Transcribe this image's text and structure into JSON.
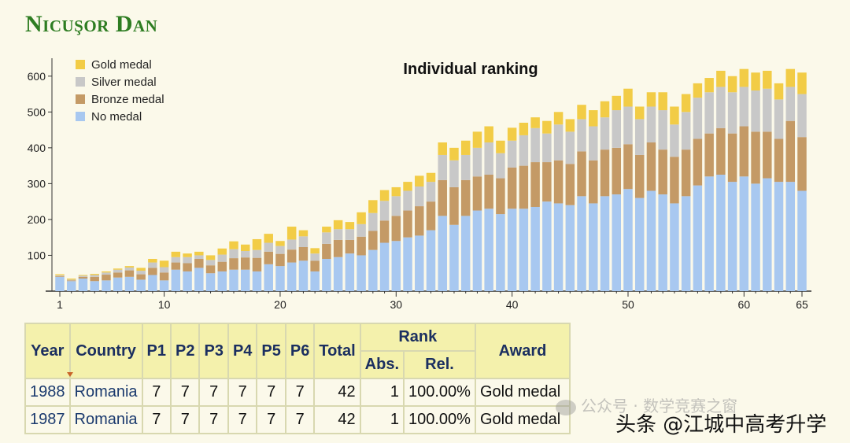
{
  "page": {
    "title": "Nicuşor Dan"
  },
  "chart_data": {
    "type": "bar",
    "stacked": true,
    "title": "Individual ranking",
    "xlabel": "",
    "ylabel": "",
    "ylim": [
      0,
      650
    ],
    "xticks": [
      1,
      10,
      20,
      30,
      40,
      50,
      60,
      65
    ],
    "yticks": [
      100,
      200,
      300,
      400,
      500,
      600
    ],
    "grid": false,
    "legend_position": "top-left",
    "categories": [
      1,
      2,
      3,
      4,
      5,
      6,
      7,
      8,
      9,
      10,
      11,
      12,
      13,
      14,
      15,
      16,
      17,
      18,
      19,
      20,
      21,
      22,
      23,
      24,
      25,
      26,
      27,
      28,
      29,
      30,
      31,
      32,
      33,
      34,
      35,
      36,
      37,
      38,
      39,
      40,
      41,
      42,
      43,
      44,
      45,
      46,
      47,
      48,
      49,
      50,
      51,
      52,
      53,
      54,
      55,
      56,
      57,
      58,
      59,
      60,
      61,
      62,
      63,
      64,
      65
    ],
    "series": [
      {
        "name": "No medal",
        "color": "#a8c8f0",
        "values": [
          40,
          28,
          35,
          28,
          30,
          38,
          40,
          32,
          45,
          30,
          60,
          55,
          65,
          50,
          55,
          60,
          60,
          55,
          75,
          70,
          80,
          85,
          55,
          90,
          95,
          105,
          100,
          115,
          135,
          140,
          150,
          155,
          170,
          210,
          185,
          210,
          225,
          230,
          215,
          230,
          230,
          235,
          250,
          245,
          240,
          265,
          245,
          265,
          270,
          285,
          260,
          280,
          270,
          245,
          265,
          295,
          320,
          325,
          305,
          320,
          300,
          315,
          305,
          305,
          280
        ]
      },
      {
        "name": "Bronze medal",
        "color": "#c49a66",
        "values": [
          2,
          2,
          5,
          12,
          16,
          14,
          18,
          15,
          20,
          22,
          20,
          23,
          25,
          22,
          27,
          32,
          34,
          38,
          35,
          34,
          36,
          38,
          30,
          42,
          48,
          38,
          52,
          53,
          62,
          70,
          75,
          82,
          80,
          100,
          105,
          100,
          95,
          95,
          100,
          115,
          120,
          125,
          110,
          120,
          115,
          125,
          120,
          130,
          130,
          125,
          120,
          135,
          125,
          130,
          130,
          130,
          120,
          130,
          135,
          140,
          145,
          130,
          120,
          170,
          150
        ]
      },
      {
        "name": "Silver medal",
        "color": "#c8c8c8",
        "values": [
          2,
          2,
          3,
          5,
          6,
          8,
          8,
          10,
          15,
          15,
          15,
          17,
          10,
          15,
          20,
          25,
          18,
          22,
          25,
          22,
          28,
          30,
          20,
          32,
          30,
          30,
          35,
          50,
          55,
          55,
          55,
          55,
          55,
          70,
          75,
          70,
          80,
          90,
          70,
          75,
          85,
          95,
          80,
          100,
          90,
          90,
          95,
          90,
          105,
          105,
          100,
          100,
          110,
          90,
          105,
          115,
          115,
          115,
          115,
          110,
          115,
          120,
          110,
          95,
          120
        ]
      },
      {
        "name": "Gold medal",
        "color": "#f2cc46",
        "values": [
          3,
          3,
          2,
          3,
          3,
          3,
          4,
          8,
          10,
          18,
          15,
          10,
          10,
          13,
          17,
          22,
          18,
          30,
          25,
          14,
          36,
          17,
          15,
          16,
          25,
          20,
          33,
          36,
          30,
          25,
          25,
          30,
          25,
          35,
          35,
          40,
          45,
          45,
          35,
          36,
          35,
          30,
          35,
          35,
          35,
          40,
          45,
          45,
          40,
          50,
          35,
          40,
          50,
          50,
          50,
          40,
          40,
          45,
          45,
          50,
          50,
          50,
          45,
          50,
          60
        ]
      }
    ]
  },
  "table": {
    "headers": {
      "year": "Year",
      "country": "Country",
      "p1": "P1",
      "p2": "P2",
      "p3": "P3",
      "p4": "P4",
      "p5": "P5",
      "p6": "P6",
      "total": "Total",
      "rank": "Rank",
      "abs": "Abs.",
      "rel": "Rel.",
      "award": "Award"
    },
    "rows": [
      {
        "year": "1988",
        "country": "Romania",
        "p1": "7",
        "p2": "7",
        "p3": "7",
        "p4": "7",
        "p5": "7",
        "p6": "7",
        "total": "42",
        "abs": "1",
        "rel": "100.00%",
        "award": "Gold medal"
      },
      {
        "year": "1987",
        "country": "Romania",
        "p1": "7",
        "p2": "7",
        "p3": "7",
        "p4": "7",
        "p5": "7",
        "p6": "7",
        "total": "42",
        "abs": "1",
        "rel": "100.00%",
        "award": "Gold medal"
      }
    ]
  },
  "watermark": {
    "faint_text": "公众号 · 数学竞赛之窗",
    "overlay_text": "头条 @江城中高考升学"
  }
}
